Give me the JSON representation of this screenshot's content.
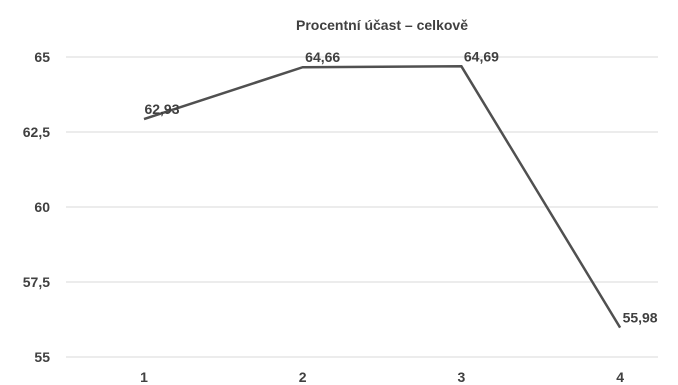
{
  "chart_data": {
    "type": "line",
    "title": "Procentní účast – celkově",
    "xlabel": "",
    "ylabel": "",
    "categories": [
      "1",
      "2",
      "3",
      "4"
    ],
    "series": [
      {
        "values": [
          62.93,
          64.66,
          64.69,
          55.98
        ],
        "data_labels": [
          "62,93",
          "64,66",
          "64,69",
          "55,98"
        ],
        "color": "#505050"
      }
    ],
    "ylim": [
      55,
      65
    ],
    "y_ticks": [
      55,
      57.5,
      60,
      62.5,
      65
    ],
    "y_tick_labels": [
      "55",
      "57,5",
      "60",
      "62,5",
      "65"
    ],
    "grid": true,
    "legend": "none"
  }
}
